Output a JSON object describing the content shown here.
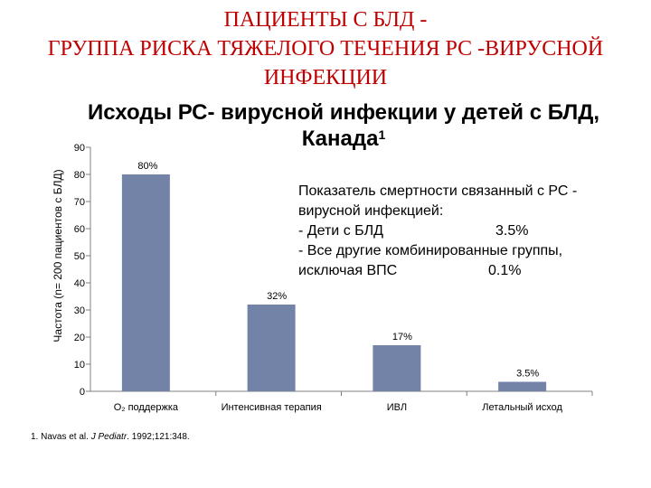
{
  "slide_title": [
    "ПАЦИЕНТЫ С БЛД -",
    "ГРУППА РИСКА ТЯЖЕЛОГО ТЕЧЕНИЯ РС -ВИРУСНОЙ",
    "ИНФЕКЦИИ"
  ],
  "chart_title": {
    "line1": "Исходы РС- вирусной инфекции у детей с БЛД,",
    "line2": "Канада",
    "sup": "1"
  },
  "annotation": {
    "heading1": "Показатель смертности связанный с РС -",
    "heading2": "вирусной инфекцией:",
    "row1_label": "- Дети с БЛД",
    "row1_value": "3.5%",
    "row2_label": "- Все другие комбинированные группы,",
    "row3_label": "исключая ВПС",
    "row3_value": "0.1%"
  },
  "footnote": {
    "prefix": "1. Navas et al. ",
    "journal": "J Pediatr",
    "suffix": ". 1992;121:348."
  },
  "colors": {
    "bar": "#7383a8",
    "title": "#c00000"
  },
  "chart_data": {
    "type": "bar",
    "title": "Исходы РС- вирусной инфекции у детей с БЛД, Канада",
    "ylabel": "Частота (n= 200 пациентов с БЛД)",
    "xlabel": "",
    "ylim": [
      0,
      90
    ],
    "yticks": [
      0,
      10,
      20,
      30,
      40,
      50,
      60,
      70,
      80,
      90
    ],
    "categories": [
      "O₂ поддержка",
      "Интенсивная терапия",
      "ИВЛ",
      "Летальный исход"
    ],
    "values": [
      80,
      32,
      17,
      3.5
    ],
    "data_labels": [
      "80%",
      "32%",
      "17%",
      "3.5%"
    ],
    "grid": false,
    "legend": "none"
  }
}
